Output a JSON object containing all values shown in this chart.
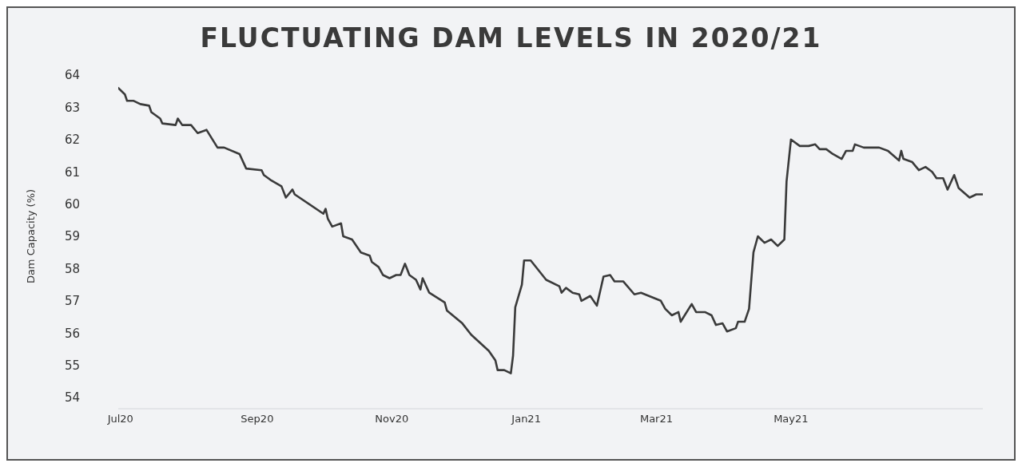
{
  "chart_data": {
    "type": "line",
    "title": "FLUCTUATING DAM LEVELS IN 2020/21",
    "ylabel": "Dam Capacity (%)",
    "x": [
      "2020-06-30",
      "2020-07-03",
      "2020-07-04",
      "2020-07-07",
      "2020-07-10",
      "2020-07-14",
      "2020-07-15",
      "2020-07-19",
      "2020-07-20",
      "2020-07-26",
      "2020-07-27",
      "2020-07-29",
      "2020-08-02",
      "2020-08-05",
      "2020-08-09",
      "2020-08-14",
      "2020-08-17",
      "2020-08-24",
      "2020-08-27",
      "2020-09-03",
      "2020-09-04",
      "2020-09-07",
      "2020-09-12",
      "2020-09-14",
      "2020-09-17",
      "2020-09-18",
      "2020-10-01",
      "2020-10-02",
      "2020-10-03",
      "2020-10-05",
      "2020-10-09",
      "2020-10-10",
      "2020-10-14",
      "2020-10-18",
      "2020-10-22",
      "2020-10-23",
      "2020-10-26",
      "2020-10-28",
      "2020-10-31",
      "2020-11-03",
      "2020-11-05",
      "2020-11-07",
      "2020-11-09",
      "2020-11-12",
      "2020-11-14",
      "2020-11-15",
      "2020-11-18",
      "2020-11-25",
      "2020-11-26",
      "2020-12-03",
      "2020-12-07",
      "2020-12-15",
      "2020-12-18",
      "2020-12-19",
      "2020-12-22",
      "2020-12-25",
      "2020-12-26",
      "2020-12-27",
      "2020-12-30",
      "2020-12-31",
      "2021-01-03",
      "2021-01-10",
      "2021-01-16",
      "2021-01-17",
      "2021-01-19",
      "2021-01-22",
      "2021-01-25",
      "2021-01-26",
      "2021-01-30",
      "2021-02-02",
      "2021-02-05",
      "2021-02-08",
      "2021-02-10",
      "2021-02-14",
      "2021-02-19",
      "2021-02-22",
      "2021-03-03",
      "2021-03-05",
      "2021-03-08",
      "2021-03-11",
      "2021-03-12",
      "2021-03-17",
      "2021-03-19",
      "2021-03-23",
      "2021-03-26",
      "2021-03-28",
      "2021-03-31",
      "2021-04-02",
      "2021-04-06",
      "2021-04-07",
      "2021-04-10",
      "2021-04-12",
      "2021-04-14",
      "2021-04-16",
      "2021-04-19",
      "2021-04-22",
      "2021-04-25",
      "2021-04-28",
      "2021-04-29",
      "2021-05-01",
      "2021-05-05",
      "2021-05-09",
      "2021-05-12",
      "2021-05-14",
      "2021-05-17",
      "2021-05-20",
      "2021-05-24",
      "2021-05-26",
      "2021-05-29",
      "2021-05-30",
      "2021-06-03",
      "2021-06-10",
      "2021-06-14",
      "2021-06-19",
      "2021-06-20",
      "2021-06-21",
      "2021-06-25",
      "2021-06-28",
      "2021-07-01",
      "2021-07-04",
      "2021-07-06",
      "2021-07-09",
      "2021-07-11",
      "2021-07-14",
      "2021-07-16",
      "2021-07-21",
      "2021-07-24",
      "2021-07-27"
    ],
    "series": [
      {
        "color": "#3a3a3a",
        "values": [
          63.6,
          63.4,
          63.2,
          63.2,
          63.1,
          63.05,
          62.85,
          62.65,
          62.5,
          62.45,
          62.65,
          62.45,
          62.45,
          62.2,
          62.3,
          61.75,
          61.75,
          61.55,
          61.1,
          61.05,
          60.9,
          60.75,
          60.55,
          60.2,
          60.45,
          60.3,
          59.7,
          59.85,
          59.55,
          59.3,
          59.4,
          59.0,
          58.9,
          58.5,
          58.4,
          58.2,
          58.05,
          57.8,
          57.7,
          57.8,
          57.8,
          58.15,
          57.8,
          57.65,
          57.35,
          57.7,
          57.25,
          56.95,
          56.7,
          56.3,
          55.95,
          55.45,
          55.15,
          54.85,
          54.85,
          54.75,
          55.3,
          56.8,
          57.5,
          58.25,
          58.25,
          57.65,
          57.45,
          57.25,
          57.4,
          57.25,
          57.2,
          57.0,
          57.15,
          56.85,
          57.75,
          57.8,
          57.6,
          57.6,
          57.2,
          57.25,
          57.0,
          56.75,
          56.55,
          56.65,
          56.35,
          56.9,
          56.65,
          56.65,
          56.55,
          56.25,
          56.3,
          56.05,
          56.15,
          56.35,
          56.35,
          56.75,
          58.5,
          59.0,
          58.8,
          58.9,
          58.7,
          58.9,
          60.7,
          62.0,
          61.8,
          61.8,
          61.85,
          61.7,
          61.7,
          61.55,
          61.4,
          61.65,
          61.65,
          61.85,
          61.75,
          61.75,
          61.65,
          61.35,
          61.65,
          61.4,
          61.3,
          61.05,
          61.15,
          61.0,
          60.8,
          60.8,
          60.45,
          60.9,
          60.5,
          60.2,
          60.3,
          60.3
        ]
      }
    ],
    "xticks": [
      {
        "value": "2020-07-01",
        "label": "Jul20"
      },
      {
        "value": "2020-09-01",
        "label": "Sep20"
      },
      {
        "value": "2020-11-01",
        "label": "Nov20"
      },
      {
        "value": "2021-01-01",
        "label": "Jan21"
      },
      {
        "value": "2021-03-01",
        "label": "Mar21"
      },
      {
        "value": "2021-05-01",
        "label": "May21"
      }
    ],
    "xlim": [
      "2020-06-30",
      "2021-07-27"
    ],
    "ylim": [
      54,
      64
    ],
    "yticks": [
      54,
      55,
      56,
      57,
      58,
      59,
      60,
      61,
      62,
      63,
      64
    ],
    "grid": false,
    "legend": false,
    "marker": "none",
    "line_style": "solid"
  }
}
